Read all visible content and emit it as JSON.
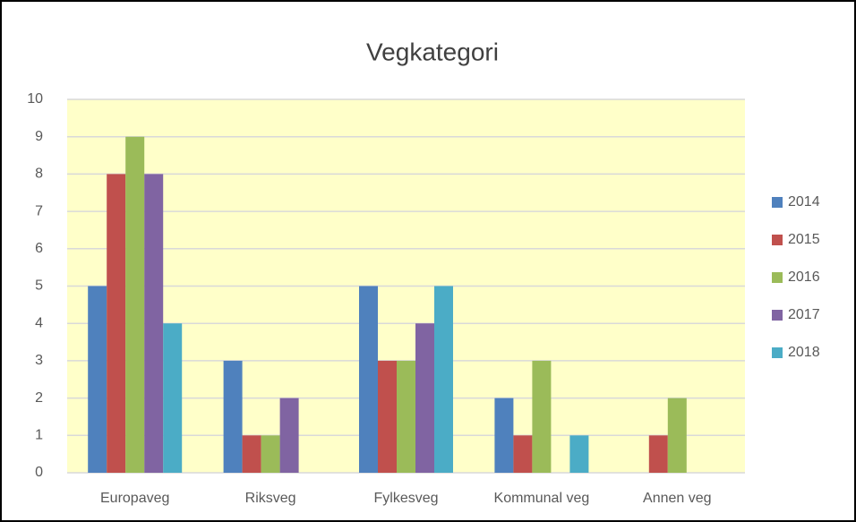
{
  "chart_data": {
    "type": "bar",
    "title": "Vegkategori",
    "categories": [
      "Europaveg",
      "Riksveg",
      "Fylkesveg",
      "Kommunal veg",
      "Annen veg"
    ],
    "series": [
      {
        "name": "2014",
        "color": "#4f81bd",
        "values": [
          5,
          3,
          5,
          2,
          0
        ]
      },
      {
        "name": "2015",
        "color": "#c0504d",
        "values": [
          8,
          1,
          3,
          1,
          1
        ]
      },
      {
        "name": "2016",
        "color": "#9bbb59",
        "values": [
          9,
          1,
          3,
          3,
          2
        ]
      },
      {
        "name": "2017",
        "color": "#8064a2",
        "values": [
          8,
          2,
          4,
          0,
          0
        ]
      },
      {
        "name": "2018",
        "color": "#4bacc6",
        "values": [
          4,
          0,
          5,
          1,
          0
        ]
      }
    ],
    "ylim": [
      0,
      10
    ],
    "yticks": [
      0,
      1,
      2,
      3,
      4,
      5,
      6,
      7,
      8,
      9,
      10
    ],
    "grid": true,
    "legend": "right"
  }
}
